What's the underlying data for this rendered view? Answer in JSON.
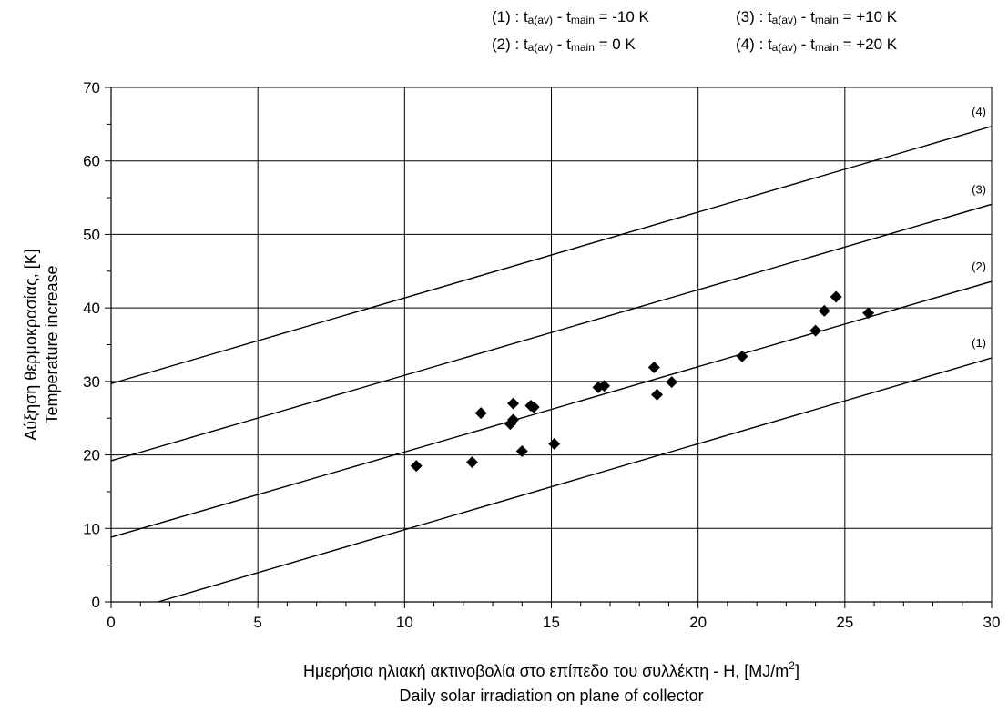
{
  "legend": {
    "entries": [
      {
        "id": "(1)",
        "sign": "-10 K"
      },
      {
        "id": "(2)",
        "sign": "0 K"
      },
      {
        "id": "(3)",
        "sign": "+10 K"
      },
      {
        "id": "(4)",
        "sign": "+20 K"
      }
    ],
    "t": "t",
    "sub_av": "a(av)",
    "sub_main": "main",
    "sep": " : ",
    "minus": " - ",
    "eq": " = "
  },
  "chart_data": {
    "type": "scatter",
    "xlabel_line1": "Ημερήσια ηλιακή ακτινοβολία στο επίπεδο του συλλέκτη - H, [MJ/m",
    "xlabel_sup": "2",
    "xlabel_line1_end": "]",
    "xlabel_line2": "Daily solar irradiation on plane of collector",
    "ylabel_line1": "Αύξηση θερμοκρασίας, [K]",
    "ylabel_line2": "Temperature increase",
    "xlim": [
      0,
      30
    ],
    "ylim": [
      0,
      70
    ],
    "x_ticks": [
      "0",
      "5",
      "10",
      "15",
      "20",
      "25",
      "30"
    ],
    "y_ticks": [
      "0",
      "10",
      "20",
      "30",
      "40",
      "50",
      "60",
      "70"
    ],
    "grid": true,
    "lines": [
      {
        "name": "(1)",
        "x": [
          1.6,
          30
        ],
        "y": [
          0,
          33.2
        ]
      },
      {
        "name": "(2)",
        "x": [
          0,
          30
        ],
        "y": [
          8.8,
          43.6
        ]
      },
      {
        "name": "(3)",
        "x": [
          0,
          30
        ],
        "y": [
          19.2,
          54.1
        ]
      },
      {
        "name": "(4)",
        "x": [
          0,
          30
        ],
        "y": [
          29.7,
          64.7
        ]
      }
    ],
    "points": [
      {
        "x": 10.4,
        "y": 18.5
      },
      {
        "x": 12.3,
        "y": 19.0
      },
      {
        "x": 12.6,
        "y": 25.7
      },
      {
        "x": 13.6,
        "y": 24.2
      },
      {
        "x": 13.7,
        "y": 24.8
      },
      {
        "x": 13.7,
        "y": 27.0
      },
      {
        "x": 14.0,
        "y": 20.5
      },
      {
        "x": 14.3,
        "y": 26.7
      },
      {
        "x": 14.4,
        "y": 26.5
      },
      {
        "x": 15.1,
        "y": 21.5
      },
      {
        "x": 16.6,
        "y": 29.2
      },
      {
        "x": 16.8,
        "y": 29.4
      },
      {
        "x": 18.5,
        "y": 31.9
      },
      {
        "x": 18.6,
        "y": 28.2
      },
      {
        "x": 19.1,
        "y": 29.9
      },
      {
        "x": 21.5,
        "y": 33.4
      },
      {
        "x": 24.0,
        "y": 36.9
      },
      {
        "x": 24.3,
        "y": 39.6
      },
      {
        "x": 24.7,
        "y": 41.5
      },
      {
        "x": 25.8,
        "y": 39.3
      }
    ]
  }
}
